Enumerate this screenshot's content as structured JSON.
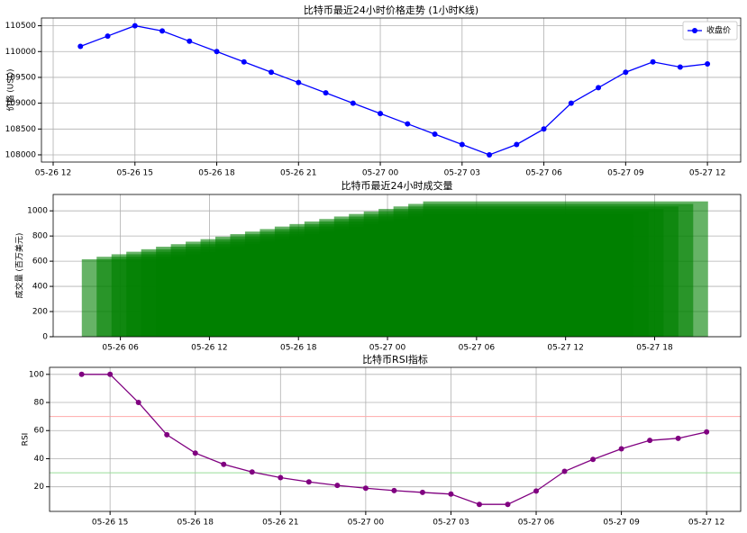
{
  "chart_data": [
    {
      "type": "line",
      "title": "比特币最近24小时价格走势 (1小时K线)",
      "ylabel": "价格 (USD)",
      "x": [
        "05-26 13",
        "05-26 14",
        "05-26 15",
        "05-26 16",
        "05-26 17",
        "05-26 18",
        "05-26 19",
        "05-26 20",
        "05-26 21",
        "05-26 22",
        "05-26 23",
        "05-27 00",
        "05-27 01",
        "05-27 02",
        "05-27 03",
        "05-27 04",
        "05-27 05",
        "05-27 06",
        "05-27 07",
        "05-27 08",
        "05-27 09",
        "05-27 10",
        "05-27 11",
        "05-27 12"
      ],
      "series": [
        {
          "name": "收盘价",
          "color": "blue",
          "values": [
            110100,
            110300,
            110500,
            110400,
            110200,
            110000,
            109800,
            109600,
            109400,
            109200,
            109000,
            108800,
            108600,
            108400,
            108200,
            108000,
            108200,
            108500,
            109000,
            109300,
            109600,
            109800,
            109700,
            109760
          ]
        }
      ],
      "ylim": [
        107860,
        110650
      ],
      "yticks": [
        108000,
        108500,
        109000,
        109500,
        110000,
        110500
      ],
      "xticks": [
        "05-26 12",
        "05-26 15",
        "05-26 18",
        "05-26 21",
        "05-27 00",
        "05-27 03",
        "05-27 06",
        "05-27 09",
        "05-27 12"
      ],
      "grid": true,
      "legend": "upper right"
    },
    {
      "type": "bar",
      "title": "比特币最近24小时成交量",
      "ylabel": "成交量 (百万美元)",
      "x": [
        "05-26 13",
        "05-26 14",
        "05-26 15",
        "05-26 16",
        "05-26 17",
        "05-26 18",
        "05-26 19",
        "05-26 20",
        "05-26 21",
        "05-26 22",
        "05-26 23",
        "05-27 00",
        "05-27 01",
        "05-27 02",
        "05-27 03",
        "05-27 04",
        "05-27 05",
        "05-27 06",
        "05-27 07",
        "05-27 08",
        "05-27 09",
        "05-27 10",
        "05-27 11",
        "05-27 12"
      ],
      "values": [
        615,
        635,
        655,
        675,
        695,
        715,
        735,
        755,
        775,
        795,
        815,
        835,
        855,
        875,
        895,
        915,
        935,
        955,
        975,
        995,
        1015,
        1035,
        1055,
        1075
      ],
      "color": "green",
      "alpha": 0.6,
      "ylim": [
        0,
        1130
      ],
      "yticks": [
        0,
        200,
        400,
        600,
        800,
        1000
      ],
      "xticks": [
        "05-26 06",
        "05-26 12",
        "05-26 18",
        "05-27 00",
        "05-27 06",
        "05-27 12",
        "05-27 18"
      ],
      "grid": true
    },
    {
      "type": "line",
      "title": "比特币RSI指标",
      "ylabel": "RSI",
      "x": [
        "05-26 14",
        "05-26 15",
        "05-26 16",
        "05-26 17",
        "05-26 18",
        "05-26 19",
        "05-26 20",
        "05-26 21",
        "05-26 22",
        "05-26 23",
        "05-27 00",
        "05-27 01",
        "05-27 02",
        "05-27 03",
        "05-27 04",
        "05-27 05",
        "05-27 06",
        "05-27 07",
        "05-27 08",
        "05-27 09",
        "05-27 10",
        "05-27 11",
        "05-27 12"
      ],
      "values": [
        100,
        100,
        80,
        57,
        44,
        36,
        30.5,
        26.5,
        23.5,
        21,
        19,
        17.3,
        16,
        14.8,
        7.5,
        7.5,
        17,
        31,
        39.5,
        47,
        53,
        54.5,
        59
      ],
      "color": "purple",
      "ylim": [
        2.5,
        105
      ],
      "yticks": [
        20,
        40,
        60,
        80,
        100
      ],
      "xticks": [
        "05-26 15",
        "05-26 18",
        "05-26 21",
        "05-27 00",
        "05-27 03",
        "05-27 06",
        "05-27 09",
        "05-27 12"
      ],
      "grid": true,
      "reference_lines": [
        {
          "value": 70,
          "color": "#ffaaaa"
        },
        {
          "value": 30,
          "color": "#99dd99"
        }
      ]
    }
  ]
}
